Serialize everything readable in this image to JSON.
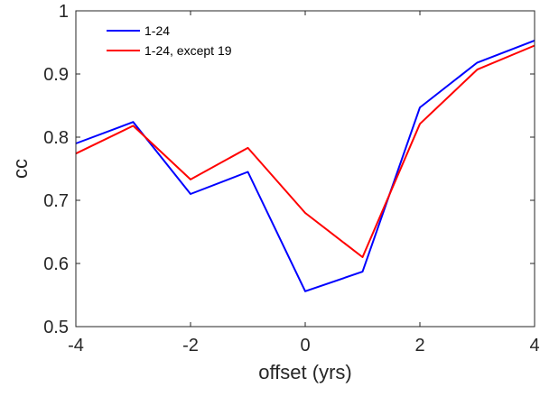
{
  "chart_data": {
    "type": "line",
    "title": "",
    "xlabel": "offset (yrs)",
    "ylabel": "cc",
    "xlim": [
      -4,
      4
    ],
    "ylim": [
      0.5,
      1
    ],
    "x_ticks": [
      "-4",
      "-2",
      "0",
      "2",
      "4"
    ],
    "x_tick_values": [
      -4,
      -2,
      0,
      2,
      4
    ],
    "y_ticks": [
      "0.5",
      "0.6",
      "0.7",
      "0.8",
      "0.9",
      "1"
    ],
    "y_tick_values": [
      0.5,
      0.6,
      0.7,
      0.8,
      0.9,
      1.0
    ],
    "grid": false,
    "legend_position": "top-left",
    "x": [
      -4,
      -3,
      -2,
      -1,
      0,
      1,
      2,
      3,
      4
    ],
    "series": [
      {
        "name": "1-24",
        "color": "#0000ff",
        "values": [
          0.79,
          0.824,
          0.71,
          0.745,
          0.556,
          0.587,
          0.847,
          0.918,
          0.953
        ]
      },
      {
        "name": "1-24, except 19",
        "color": "#ff0000",
        "values": [
          0.774,
          0.818,
          0.733,
          0.783,
          0.68,
          0.61,
          0.821,
          0.907,
          0.945
        ]
      }
    ]
  }
}
